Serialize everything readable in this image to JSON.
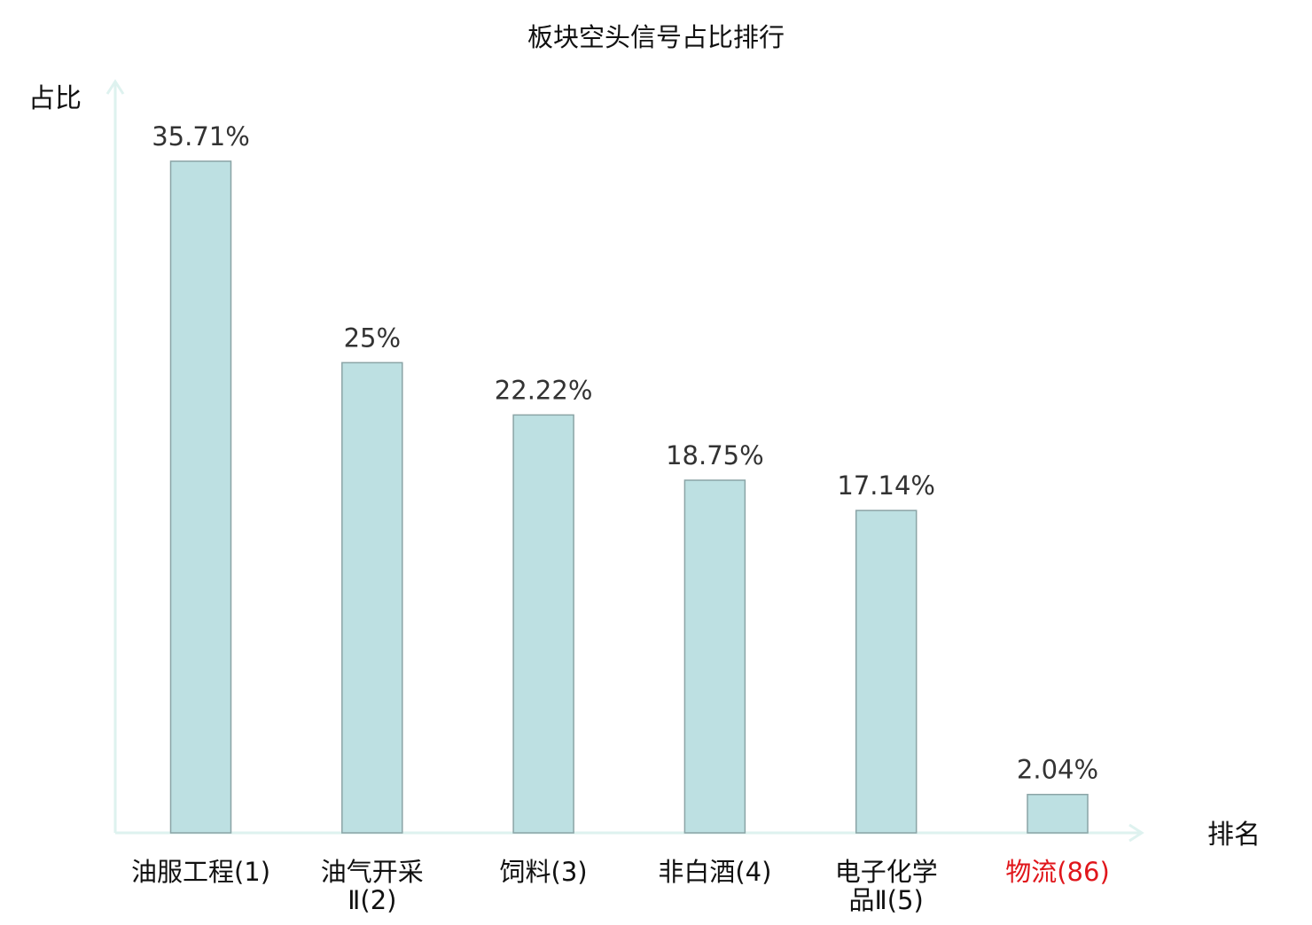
{
  "chart_data": {
    "type": "bar",
    "title": "板块空头信号占比排行",
    "ylabel": "占比",
    "xlabel": "排名",
    "ylim": [
      0,
      40
    ],
    "grid": false,
    "categories": [
      {
        "lines": [
          "油服工程(1)"
        ],
        "highlight": false
      },
      {
        "lines": [
          "油气开采",
          "Ⅱ(2)"
        ],
        "highlight": false
      },
      {
        "lines": [
          "饲料(3)"
        ],
        "highlight": false
      },
      {
        "lines": [
          "非白酒(4)"
        ],
        "highlight": false
      },
      {
        "lines": [
          "电子化学",
          "品Ⅱ(5)"
        ],
        "highlight": false
      },
      {
        "lines": [
          "物流(86)"
        ],
        "highlight": true
      }
    ],
    "values": [
      35.71,
      25,
      22.22,
      18.75,
      17.14,
      2.04
    ],
    "value_labels": [
      "35.71%",
      "25%",
      "22.22%",
      "18.75%",
      "17.14%",
      "2.04%"
    ],
    "colors": {
      "bar_fill": "#bde0e2",
      "bar_stroke": "#8aa4a6",
      "axis": "#def2ef",
      "text": "#333333",
      "highlight_text": "#e0161b"
    }
  }
}
